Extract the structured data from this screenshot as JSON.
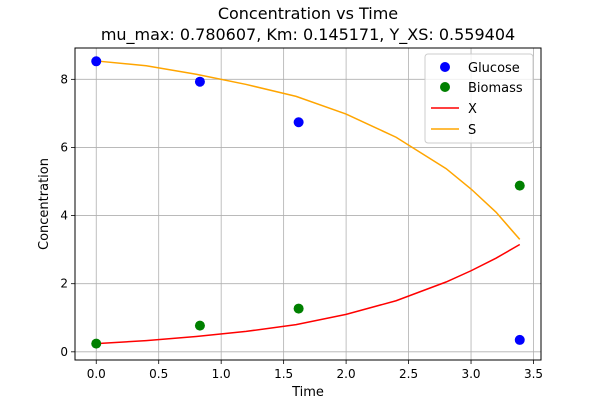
{
  "chart_data": {
    "type": "line",
    "title_line1": "Concentration vs Time",
    "title_line2": "mu_max: 0.780607, Km: 0.145171, Y_XS: 0.559404",
    "xlabel": "Time",
    "ylabel": "Concentration",
    "xlim": [
      -0.17,
      3.56
    ],
    "ylim": [
      -0.24,
      8.92
    ],
    "xticks": [
      0.0,
      0.5,
      1.0,
      1.5,
      2.0,
      2.5,
      3.0,
      3.5
    ],
    "xtick_labels": [
      "0.0",
      "0.5",
      "1.0",
      "1.5",
      "2.0",
      "2.5",
      "3.0",
      "3.5"
    ],
    "yticks": [
      0,
      2,
      4,
      6,
      8
    ],
    "ytick_labels": [
      "0",
      "2",
      "4",
      "6",
      "8"
    ],
    "grid": true,
    "legend_position": "top-right",
    "scatter_series": [
      {
        "name": "Glucose",
        "color": "#0000ff",
        "x": [
          0.0,
          0.83,
          1.62,
          3.39
        ],
        "y": [
          8.53,
          7.93,
          6.74,
          0.35
        ]
      },
      {
        "name": "Biomass",
        "color": "#008000",
        "x": [
          0.0,
          0.83,
          1.62,
          3.39
        ],
        "y": [
          0.24,
          0.77,
          1.27,
          4.88
        ]
      }
    ],
    "line_series": [
      {
        "name": "X",
        "color": "#ff0000",
        "x": [
          0.0,
          0.4,
          0.8,
          1.2,
          1.6,
          2.0,
          2.4,
          2.8,
          3.0,
          3.2,
          3.39
        ],
        "y": [
          0.24,
          0.33,
          0.45,
          0.6,
          0.8,
          1.1,
          1.5,
          2.05,
          2.38,
          2.75,
          3.15
        ]
      },
      {
        "name": "S",
        "color": "#ffa500",
        "x": [
          0.0,
          0.4,
          0.8,
          1.2,
          1.6,
          2.0,
          2.4,
          2.8,
          3.0,
          3.2,
          3.39
        ],
        "y": [
          8.54,
          8.4,
          8.15,
          7.85,
          7.5,
          6.98,
          6.3,
          5.38,
          4.78,
          4.1,
          3.3
        ]
      }
    ]
  }
}
